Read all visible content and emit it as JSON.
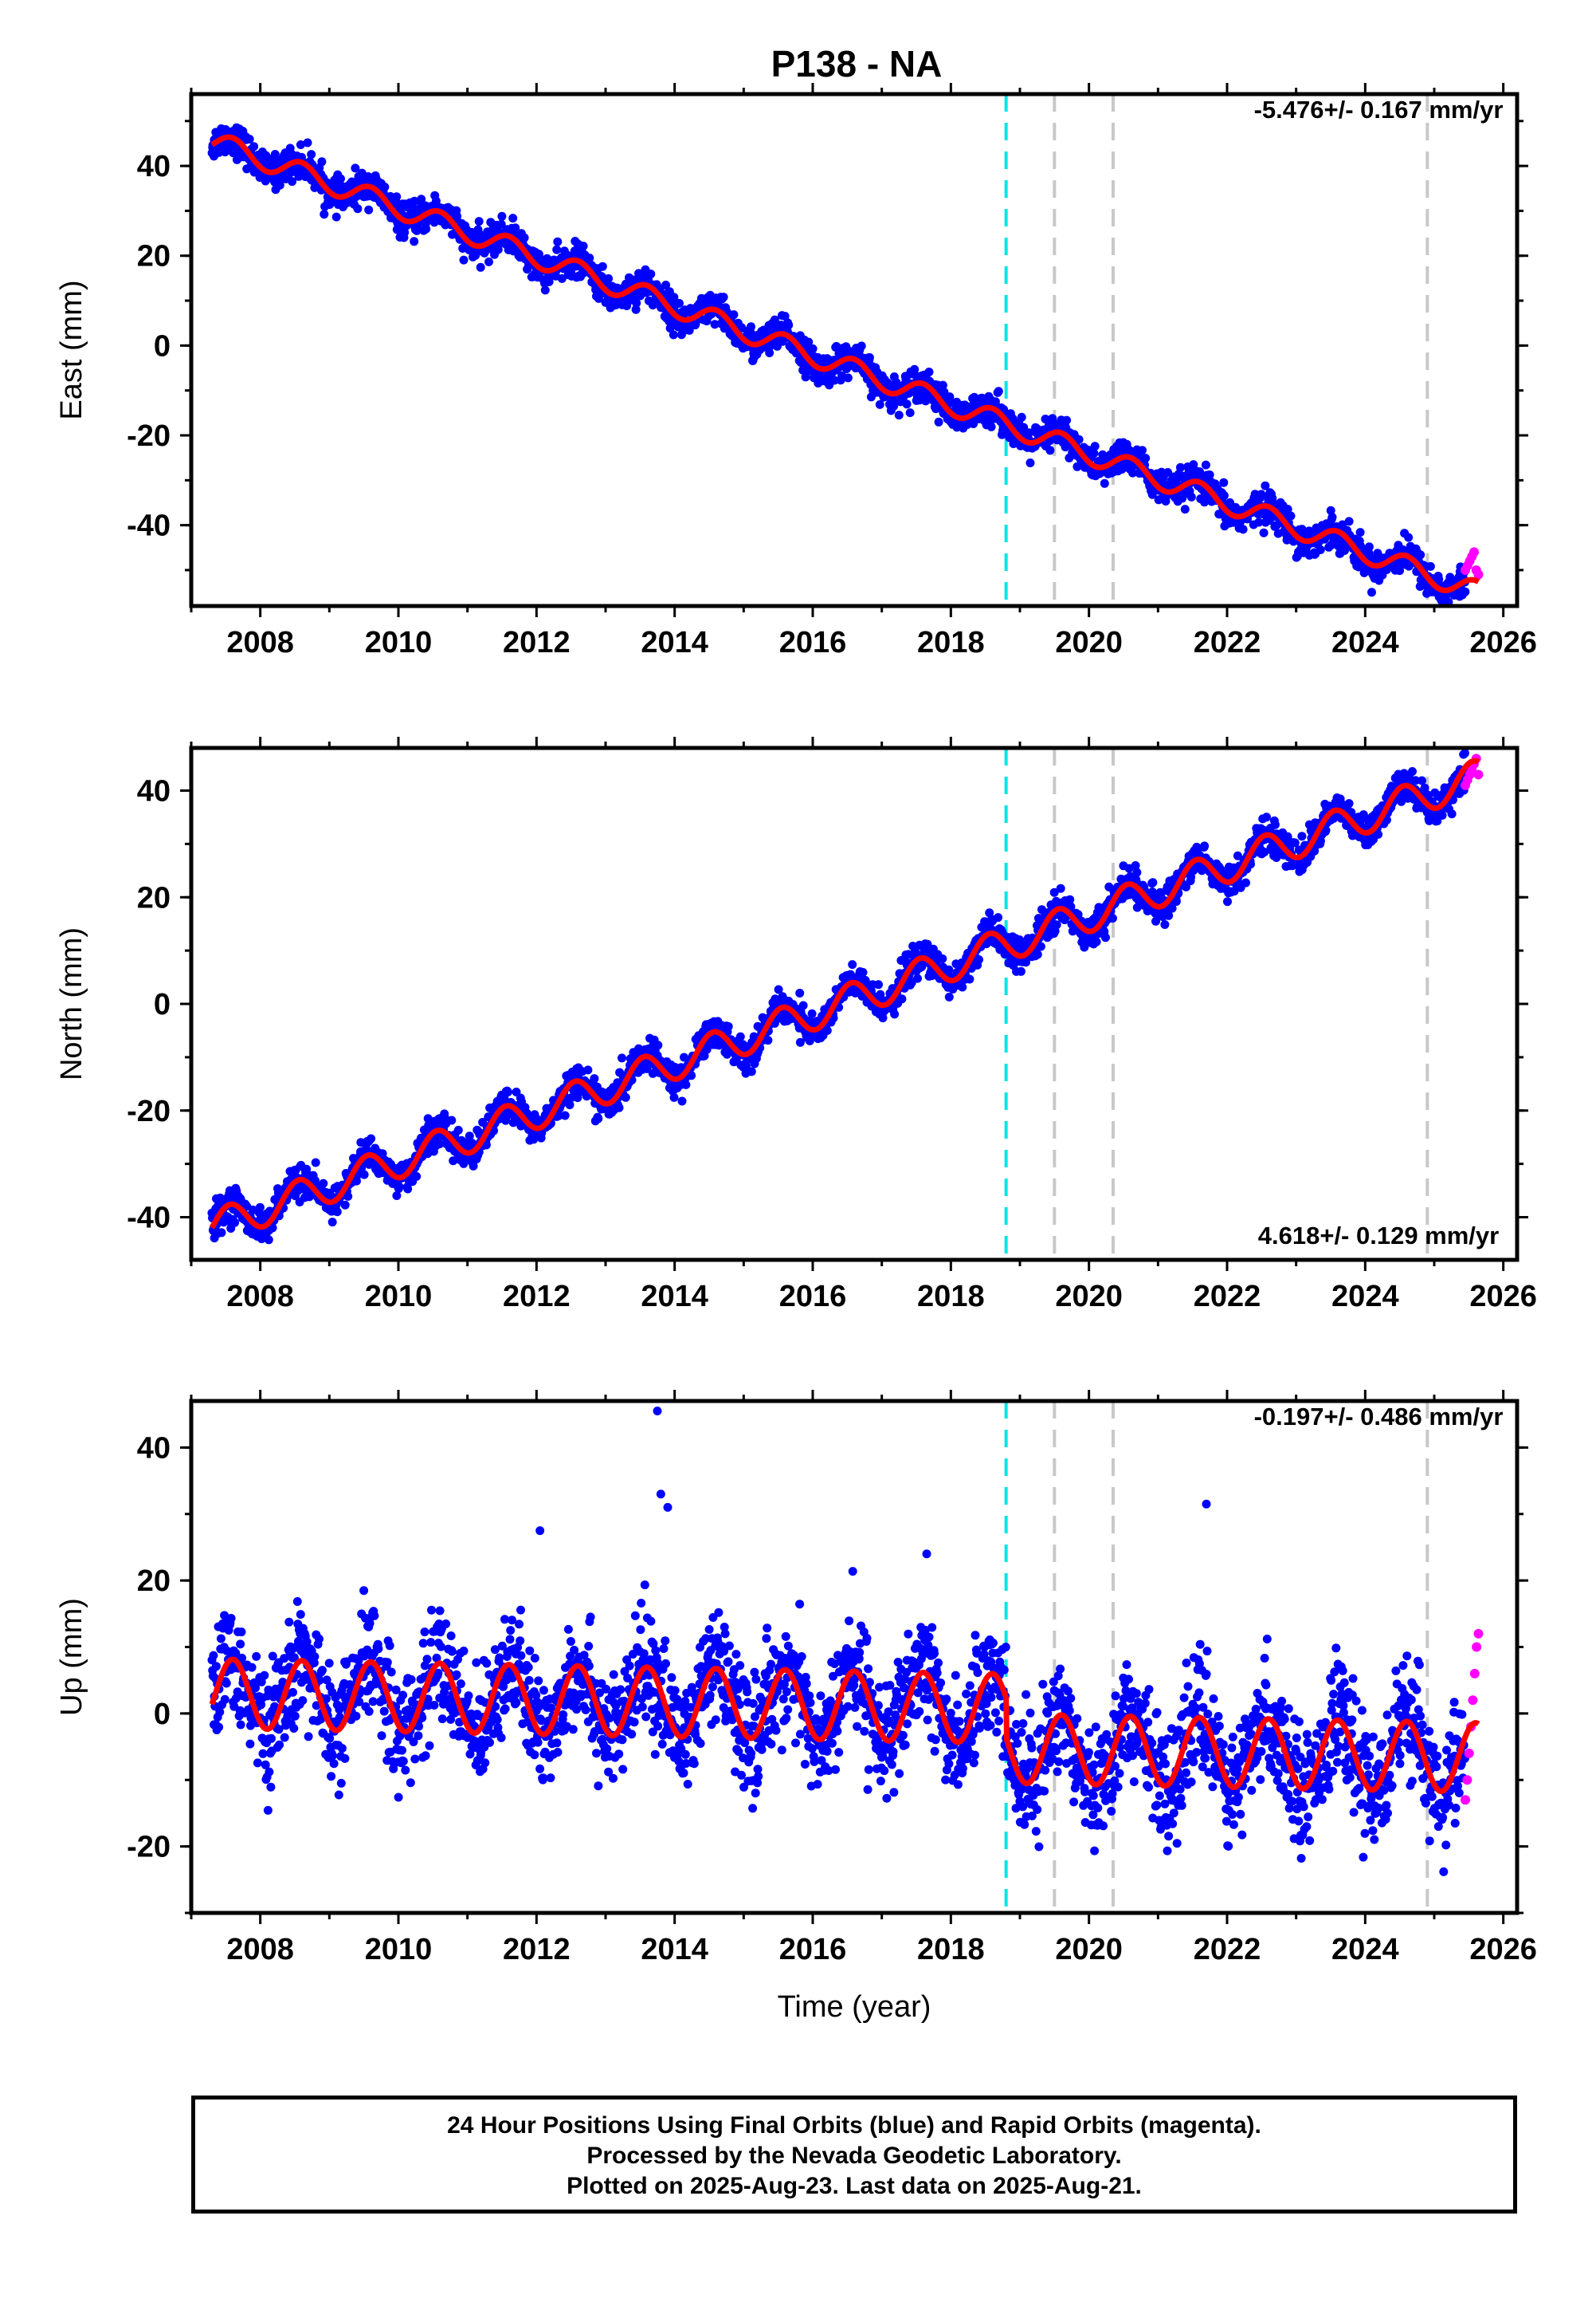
{
  "title": "P138 - NA",
  "footer": {
    "line1": "24 Hour Positions Using Final Orbits (blue) and Rapid Orbits (magenta).",
    "line2": "Processed by the Nevada Geodetic Laboratory.",
    "line3": "Plotted on 2025-Aug-23. Last data on 2025-Aug-21."
  },
  "colors": {
    "final_orbits": "#0000ff",
    "rapid_orbits": "#ff00ff",
    "model_fit": "#ff0000",
    "equipment_change": "#00e5e5",
    "other_event": "#c8c8c8"
  },
  "chart_data": [
    {
      "type": "scatter",
      "panel": "east",
      "ylabel": "East (mm)",
      "xlabel": "",
      "rate_label": "-5.476+/- 0.167 mm/yr",
      "xlim": [
        2007.0,
        2026.2
      ],
      "ylim": [
        -58,
        56
      ],
      "xticks": [
        "2008",
        "2010",
        "2012",
        "2014",
        "2016",
        "2018",
        "2020",
        "2022",
        "2024",
        "2026"
      ],
      "yticks": [
        "-40",
        "-20",
        "0",
        "20",
        "40"
      ],
      "model": {
        "intercept_at_2007_3": 45.5,
        "rate": -5.476,
        "annual_amp": 2.4,
        "annual_phase_peak": 0.6,
        "end_x": 2025.64
      },
      "final_orbits": {
        "start": 2007.3,
        "end": 2025.45,
        "noise_mm": 1.8
      },
      "rapid_orbits": {
        "start": 2025.45,
        "end": 2025.64,
        "values_mm": [
          -50,
          -49,
          -48,
          -47,
          -46,
          -50,
          -51
        ]
      },
      "event_lines": [
        {
          "x": 2018.8,
          "kind": "equipment_change"
        },
        {
          "x": 2019.5,
          "kind": "other_event"
        },
        {
          "x": 2020.35,
          "kind": "other_event"
        },
        {
          "x": 2024.9,
          "kind": "other_event"
        }
      ]
    },
    {
      "type": "scatter",
      "panel": "north",
      "ylabel": "North (mm)",
      "xlabel": "",
      "rate_label": "4.618+/- 0.129 mm/yr",
      "xlim": [
        2007.0,
        2026.2
      ],
      "ylim": [
        -48,
        48
      ],
      "xticks": [
        "2008",
        "2010",
        "2012",
        "2014",
        "2016",
        "2018",
        "2020",
        "2022",
        "2024",
        "2026"
      ],
      "yticks": [
        "-40",
        "-20",
        "0",
        "20",
        "40"
      ],
      "model": {
        "intercept_at_2007_3": -42,
        "rate": 4.618,
        "annual_amp": 3.2,
        "annual_phase_peak": 0.55,
        "end_x": 2025.64
      },
      "final_orbits": {
        "start": 2007.3,
        "end": 2025.45,
        "noise_mm": 1.5
      },
      "rapid_orbits": {
        "start": 2025.45,
        "end": 2025.64,
        "values_mm": [
          41,
          42,
          43,
          44,
          45,
          46,
          43
        ]
      },
      "event_lines": [
        {
          "x": 2018.8,
          "kind": "equipment_change"
        },
        {
          "x": 2019.5,
          "kind": "other_event"
        },
        {
          "x": 2020.35,
          "kind": "other_event"
        },
        {
          "x": 2024.9,
          "kind": "other_event"
        }
      ]
    },
    {
      "type": "scatter",
      "panel": "up",
      "ylabel": "Up (mm)",
      "xlabel": "Time (year)",
      "rate_label": "-0.197+/- 0.486 mm/yr",
      "xlim": [
        2007.0,
        2026.2
      ],
      "ylim": [
        -30,
        47
      ],
      "xticks": [
        "2008",
        "2010",
        "2012",
        "2014",
        "2016",
        "2018",
        "2020",
        "2022",
        "2024",
        "2026"
      ],
      "yticks": [
        "-20",
        "0",
        "20",
        "40"
      ],
      "model": {
        "intercept_at_2007_3": 3,
        "rate": -0.197,
        "annual_amp": 5.2,
        "annual_phase_peak": 0.6,
        "offset_after_2018_8": -6,
        "end_x": 2025.64
      },
      "final_orbits": {
        "start": 2007.3,
        "end": 2025.45,
        "noise_mm": 4.2
      },
      "rapid_orbits": {
        "start": 2025.45,
        "end": 2025.64,
        "values_mm": [
          -13,
          -10,
          -6,
          -2,
          2,
          6,
          10,
          12
        ]
      },
      "outliers": [
        {
          "x": 2013.75,
          "y": 45.5
        },
        {
          "x": 2013.8,
          "y": 33
        },
        {
          "x": 2013.9,
          "y": 31
        },
        {
          "x": 2012.05,
          "y": 27.5
        },
        {
          "x": 2021.7,
          "y": 31.5
        },
        {
          "x": 2017.65,
          "y": 24
        }
      ],
      "event_lines": [
        {
          "x": 2018.8,
          "kind": "equipment_change"
        },
        {
          "x": 2019.5,
          "kind": "other_event"
        },
        {
          "x": 2020.35,
          "kind": "other_event"
        },
        {
          "x": 2024.9,
          "kind": "other_event"
        }
      ]
    }
  ]
}
